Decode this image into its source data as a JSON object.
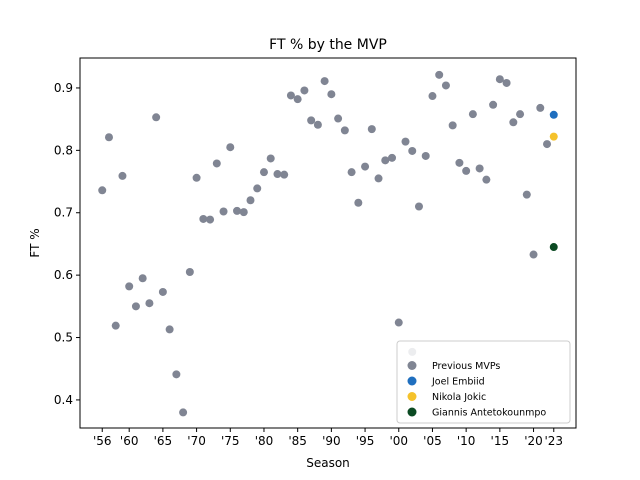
{
  "chart_data": {
    "type": "scatter",
    "title": "FT % by the MVP",
    "xlabel": "Season",
    "ylabel": "FT %",
    "xlim": [
      1952.7,
      2026.3
    ],
    "ylim": [
      0.355,
      0.948
    ],
    "x_ticks": [
      1956,
      1960,
      1965,
      1970,
      1975,
      1980,
      1985,
      1990,
      1995,
      2000,
      2005,
      2010,
      2015,
      2020,
      2023
    ],
    "x_tick_labels": [
      "'56",
      "'60",
      "'65",
      "'70",
      "'75",
      "'80",
      "'85",
      "'90",
      "'95",
      "'00",
      "'05",
      "'10",
      "'15",
      "'20",
      "'23"
    ],
    "y_ticks": [
      0.4,
      0.5,
      0.6,
      0.7,
      0.8,
      0.9
    ],
    "y_tick_labels": [
      "0.4",
      "0.5",
      "0.6",
      "0.7",
      "0.8",
      "0.9"
    ],
    "grid": false,
    "legend_position": "lower-right",
    "series": [
      {
        "name": "Previous MVPs",
        "color": "#808593",
        "points": [
          {
            "x": 1956,
            "y": 0.736
          },
          {
            "x": 1957,
            "y": 0.821
          },
          {
            "x": 1958,
            "y": 0.519
          },
          {
            "x": 1959,
            "y": 0.759
          },
          {
            "x": 1960,
            "y": 0.582
          },
          {
            "x": 1961,
            "y": 0.55
          },
          {
            "x": 1962,
            "y": 0.595
          },
          {
            "x": 1963,
            "y": 0.555
          },
          {
            "x": 1964,
            "y": 0.853
          },
          {
            "x": 1965,
            "y": 0.573
          },
          {
            "x": 1966,
            "y": 0.513
          },
          {
            "x": 1967,
            "y": 0.441
          },
          {
            "x": 1968,
            "y": 0.38
          },
          {
            "x": 1969,
            "y": 0.605
          },
          {
            "x": 1970,
            "y": 0.756
          },
          {
            "x": 1971,
            "y": 0.69
          },
          {
            "x": 1972,
            "y": 0.689
          },
          {
            "x": 1973,
            "y": 0.779
          },
          {
            "x": 1974,
            "y": 0.702
          },
          {
            "x": 1975,
            "y": 0.805
          },
          {
            "x": 1976,
            "y": 0.703
          },
          {
            "x": 1977,
            "y": 0.701
          },
          {
            "x": 1978,
            "y": 0.72
          },
          {
            "x": 1979,
            "y": 0.739
          },
          {
            "x": 1980,
            "y": 0.765
          },
          {
            "x": 1981,
            "y": 0.787
          },
          {
            "x": 1982,
            "y": 0.762
          },
          {
            "x": 1983,
            "y": 0.761
          },
          {
            "x": 1984,
            "y": 0.888
          },
          {
            "x": 1985,
            "y": 0.882
          },
          {
            "x": 1986,
            "y": 0.896
          },
          {
            "x": 1987,
            "y": 0.848
          },
          {
            "x": 1988,
            "y": 0.841
          },
          {
            "x": 1989,
            "y": 0.911
          },
          {
            "x": 1990,
            "y": 0.89
          },
          {
            "x": 1991,
            "y": 0.851
          },
          {
            "x": 1992,
            "y": 0.832
          },
          {
            "x": 1993,
            "y": 0.765
          },
          {
            "x": 1994,
            "y": 0.716
          },
          {
            "x": 1995,
            "y": 0.774
          },
          {
            "x": 1996,
            "y": 0.834
          },
          {
            "x": 1997,
            "y": 0.755
          },
          {
            "x": 1998,
            "y": 0.784
          },
          {
            "x": 1999,
            "y": 0.788
          },
          {
            "x": 2000,
            "y": 0.524
          },
          {
            "x": 2001,
            "y": 0.814
          },
          {
            "x": 2002,
            "y": 0.799
          },
          {
            "x": 2003,
            "y": 0.71
          },
          {
            "x": 2004,
            "y": 0.791
          },
          {
            "x": 2005,
            "y": 0.887
          },
          {
            "x": 2006,
            "y": 0.921
          },
          {
            "x": 2007,
            "y": 0.904
          },
          {
            "x": 2008,
            "y": 0.84
          },
          {
            "x": 2009,
            "y": 0.78
          },
          {
            "x": 2010,
            "y": 0.767
          },
          {
            "x": 2011,
            "y": 0.858
          },
          {
            "x": 2012,
            "y": 0.771
          },
          {
            "x": 2013,
            "y": 0.753
          },
          {
            "x": 2014,
            "y": 0.873
          },
          {
            "x": 2015,
            "y": 0.914
          },
          {
            "x": 2016,
            "y": 0.908
          },
          {
            "x": 2017,
            "y": 0.845
          },
          {
            "x": 2018,
            "y": 0.858
          },
          {
            "x": 2019,
            "y": 0.729
          },
          {
            "x": 2020,
            "y": 0.633
          },
          {
            "x": 2021,
            "y": 0.868
          },
          {
            "x": 2022,
            "y": 0.81
          },
          {
            "x": 2002,
            "y": 0.477
          }
        ]
      },
      {
        "name": "Joel Embiid",
        "color": "#1f6fbf",
        "points": [
          {
            "x": 2023,
            "y": 0.857
          }
        ]
      },
      {
        "name": "Nikola Jokic",
        "color": "#f5c22b",
        "points": [
          {
            "x": 2023,
            "y": 0.822
          }
        ]
      },
      {
        "name": "Giannis Antetokounmpo",
        "color": "#0b4a22",
        "points": [
          {
            "x": 2023,
            "y": 0.645
          }
        ]
      }
    ]
  }
}
